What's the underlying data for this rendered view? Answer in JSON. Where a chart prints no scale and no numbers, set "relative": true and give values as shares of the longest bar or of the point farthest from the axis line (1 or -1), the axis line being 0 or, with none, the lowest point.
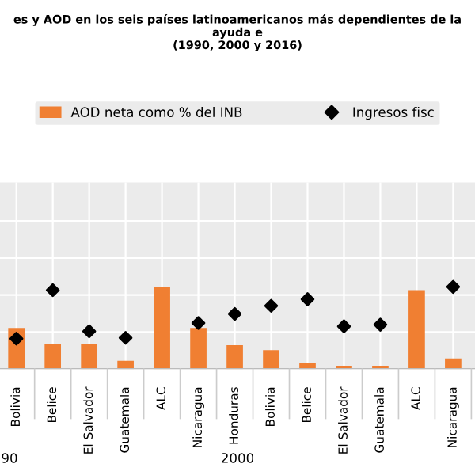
{
  "chart_data": {
    "type": "bar",
    "title": "es y AOD en los seis países latinoamericanos más dependientes de la ayuda e",
    "subtitle": "(1990, 2000 y 2016)",
    "categories": [
      "Bolivia",
      "Belice",
      "El Salvador",
      "Guatemala",
      "ALC",
      "Nicaragua",
      "Honduras",
      "Bolivia",
      "Belice",
      "El Salvador",
      "Guatemala",
      "ALC",
      "Nicaragua"
    ],
    "relative": true,
    "grid": true,
    "legend": "top",
    "marker": "diamond",
    "series": [
      {
        "name": "AOD neta como % del INB",
        "color": "#f07f32",
        "values": [
          0.5,
          0.31,
          0.31,
          0.1,
          1.0,
          0.5,
          0.29,
          0.23,
          0.08,
          0.04,
          0.04,
          0.96,
          0.13
        ]
      },
      {
        "name": "Ingresos fisc",
        "type": "scatter",
        "color": "#000000",
        "values": [
          0.37,
          0.96,
          0.46,
          0.38,
          null,
          0.56,
          0.67,
          0.77,
          0.85,
          0.52,
          0.54,
          null,
          1.0
        ]
      }
    ],
    "annotations": [
      "90",
      "2000"
    ]
  }
}
